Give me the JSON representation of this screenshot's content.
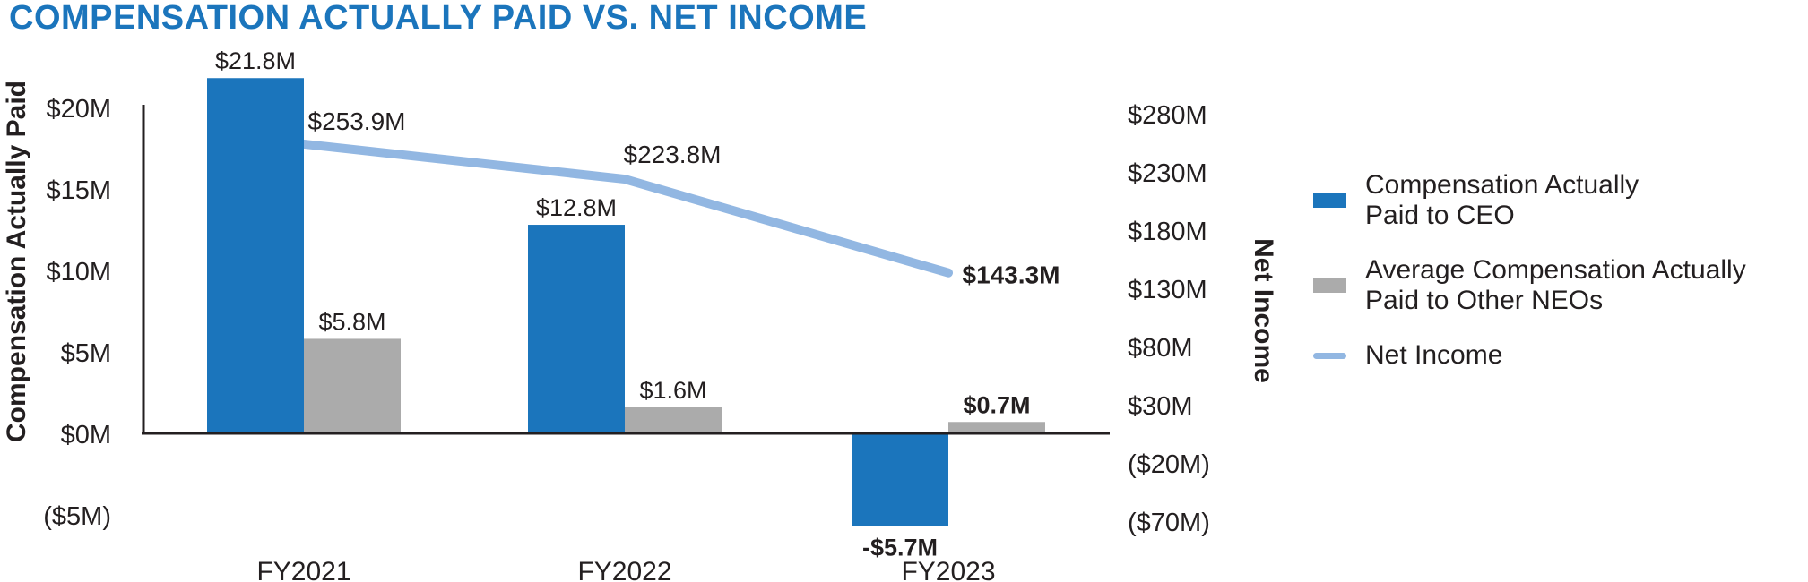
{
  "page": {
    "background": "#FFFFFF",
    "text_color": "#231F20"
  },
  "chart_data": {
    "type": "combo",
    "title": "COMPENSATION ACTUALLY PAID VS. NET INCOME",
    "title_color": "#1B75BC",
    "categories": [
      "FY2021",
      "FY2022",
      "FY2023"
    ],
    "label_bold_per_category": [
      false,
      false,
      true
    ],
    "series": [
      {
        "name": "Compensation Actually Paid to CEO",
        "type": "bar",
        "axis": "left",
        "color": "#1B75BC",
        "values": [
          21.8,
          12.8,
          -5.7
        ],
        "labels": [
          "$21.8M",
          "$12.8M",
          "-$5.7M"
        ],
        "label_color": "#1B75BC"
      },
      {
        "name": "Average Compensation Actually Paid to Other NEOs",
        "type": "bar",
        "axis": "left",
        "color": "#ABABAB",
        "values": [
          5.8,
          1.6,
          0.7
        ],
        "labels": [
          "$5.8M",
          "$1.6M",
          "$0.7M"
        ],
        "label_color": "#231F20"
      },
      {
        "name": "Net Income",
        "type": "line",
        "axis": "right",
        "color": "#92B7E2",
        "values": [
          253.9,
          223.8,
          143.3
        ],
        "labels": [
          "$253.9M",
          "$223.8M",
          "$143.3M"
        ],
        "label_color": "#92B7E2"
      }
    ],
    "left_axis": {
      "label": "Compensation Actually Paid",
      "unit": "$M",
      "ticks": [
        {
          "value": 20,
          "label": "$20M"
        },
        {
          "value": 15,
          "label": "$15M"
        },
        {
          "value": 10,
          "label": "$10M"
        },
        {
          "value": 5,
          "label": "$5M"
        },
        {
          "value": 0,
          "label": "$0M"
        },
        {
          "value": -5,
          "label": "($5M)"
        }
      ]
    },
    "right_axis": {
      "label": "Net Income",
      "unit": "$M",
      "ticks": [
        {
          "value": 280,
          "label": "$280M"
        },
        {
          "value": 230,
          "label": "$230M"
        },
        {
          "value": 180,
          "label": "$180M"
        },
        {
          "value": 130,
          "label": "$130M"
        },
        {
          "value": 80,
          "label": "$80M"
        },
        {
          "value": 30,
          "label": "$30M"
        },
        {
          "value": -20,
          "label": "($20M)"
        },
        {
          "value": -70,
          "label": "($70M)"
        }
      ]
    },
    "legend": [
      {
        "key": "ceo",
        "swatch": "bar",
        "color": "#1B75BC",
        "lines": [
          "Compensation Actually",
          "Paid to CEO"
        ]
      },
      {
        "key": "neo",
        "swatch": "bar",
        "color": "#ABABAB",
        "lines": [
          "Average Compensation Actually",
          "Paid to Other NEOs"
        ]
      },
      {
        "key": "net-income",
        "swatch": "line",
        "color": "#92B7E2",
        "lines": [
          "Net Income"
        ]
      }
    ],
    "grid": false,
    "legend_position": "right"
  }
}
